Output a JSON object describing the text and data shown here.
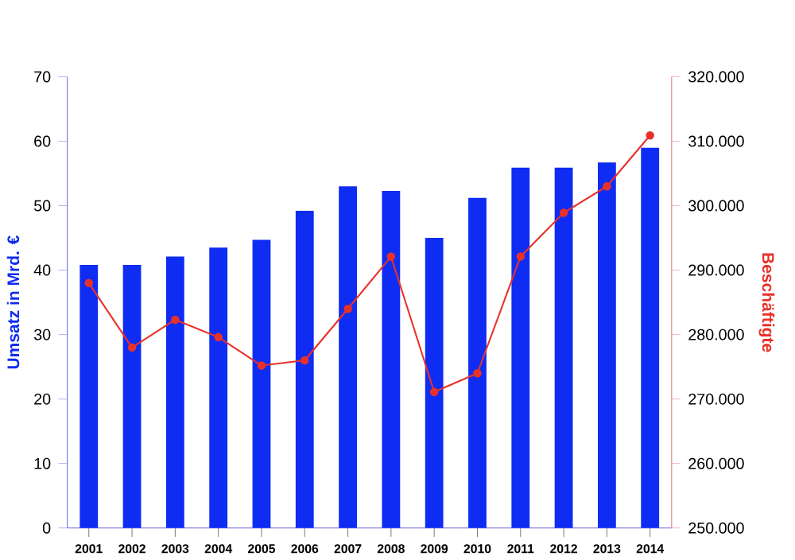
{
  "chart_data": {
    "type": "bar",
    "ylabel": "Umsatz in Mrd. €",
    "y2label": "Beschäftigte",
    "categories": [
      "2001",
      "2002",
      "2003",
      "2004",
      "2005",
      "2006",
      "2007",
      "2008",
      "2009",
      "2010",
      "2011",
      "2012",
      "2013",
      "2014"
    ],
    "series": [
      {
        "color": "#0f2cf2",
        "values": [
          40.8,
          40.8,
          42.1,
          43.5,
          44.7,
          49.2,
          53.0,
          52.3,
          45.0,
          51.2,
          55.9,
          55.9,
          56.7,
          59.0
        ]
      },
      {
        "type": "line",
        "axis": "y2",
        "color": "#e8312a",
        "marker": "circle",
        "values": [
          288000,
          278000,
          282300,
          279600,
          275200,
          276000,
          284000,
          292100,
          271100,
          274000,
          292100,
          298900,
          303000,
          310900
        ]
      }
    ],
    "ylim": [
      0,
      70
    ],
    "yticks": [
      0,
      10,
      20,
      30,
      40,
      50,
      60,
      70
    ],
    "y2lim": [
      250000,
      320000
    ],
    "y2ticks": [
      {
        "value": 250000,
        "label": "250.000"
      },
      {
        "value": 260000,
        "label": "260.000"
      },
      {
        "value": 270000,
        "label": "270.000"
      },
      {
        "value": 280000,
        "label": "280.000"
      },
      {
        "value": 290000,
        "label": "290.000"
      },
      {
        "value": 300000,
        "label": "300.000"
      },
      {
        "value": 310000,
        "label": "310.000"
      },
      {
        "value": 320000,
        "label": "320.000"
      }
    ]
  }
}
